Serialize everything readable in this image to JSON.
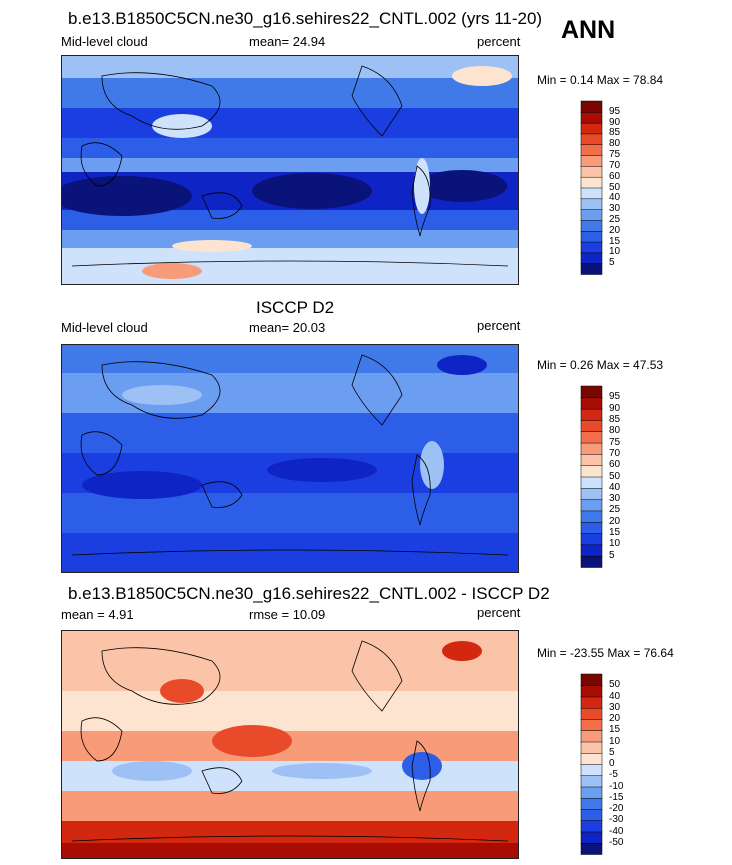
{
  "season": "ANN",
  "colors": {
    "cloud_scale": [
      "#0a137a",
      "#0f24c4",
      "#1a3ee0",
      "#2d5ee8",
      "#3f7ae8",
      "#6b9df0",
      "#9dc0f5",
      "#cfe2fb",
      "#fde4d0",
      "#fbc4a8",
      "#f79b78",
      "#f36f4c",
      "#e84a2a",
      "#d3280f",
      "#a80c02",
      "#7a0600"
    ],
    "diff_scale": [
      "#0a137a",
      "#0f24c4",
      "#1a3ee0",
      "#2d5ee8",
      "#3f7ae8",
      "#6b9df0",
      "#9dc0f5",
      "#cfe2fb",
      "#fde4d0",
      "#fbc4a8",
      "#f79b78",
      "#f36f4c",
      "#e84a2a",
      "#d3280f",
      "#a80c02",
      "#7a0600"
    ]
  },
  "panels": [
    {
      "title": "b.e13.B1850C5CN.ne30_g16.sehires22_CNTL.002 (yrs 11-20)",
      "left_label": "Mid-level cloud",
      "mean_text": "mean=  24.94",
      "units": "percent",
      "minmax": "Min =   0.14 Max =  78.84"
    },
    {
      "title": "ISCCP D2",
      "left_label": "Mid-level cloud",
      "mean_text": "mean=  20.03",
      "units": "percent",
      "minmax": "Min =   0.26 Max =  47.53"
    },
    {
      "title": "b.e13.B1850C5CN.ne30_g16.sehires22_CNTL.002 - ISCCP D2",
      "left_label": "mean =   4.91",
      "mean_text": "rmse =  10.09",
      "units": "percent",
      "minmax": "Min = -23.55 Max =  76.64"
    }
  ],
  "chart_data": [
    {
      "type": "heatmap",
      "title": "b.e13.B1850C5CN.ne30_g16.sehires22_CNTL.002 (yrs 11-20)",
      "variable": "Mid-level cloud",
      "units": "percent",
      "mean": 24.94,
      "min": 0.14,
      "max": 78.84,
      "colorbar_levels": [
        5,
        10,
        15,
        20,
        25,
        30,
        40,
        50,
        60,
        70,
        75,
        80,
        85,
        90,
        95
      ]
    },
    {
      "type": "heatmap",
      "title": "ISCCP D2",
      "variable": "Mid-level cloud",
      "units": "percent",
      "mean": 20.03,
      "min": 0.26,
      "max": 47.53,
      "colorbar_levels": [
        5,
        10,
        15,
        20,
        25,
        30,
        40,
        50,
        60,
        70,
        75,
        80,
        85,
        90,
        95
      ]
    },
    {
      "type": "heatmap",
      "title": "b.e13.B1850C5CN.ne30_g16.sehires22_CNTL.002 - ISCCP D2",
      "units": "percent",
      "mean": 4.91,
      "rmse": 10.09,
      "min": -23.55,
      "max": 76.64,
      "colorbar_levels": [
        -50,
        -40,
        -30,
        -20,
        -15,
        -10,
        -5,
        0,
        5,
        10,
        15,
        20,
        30,
        40,
        50
      ]
    }
  ]
}
